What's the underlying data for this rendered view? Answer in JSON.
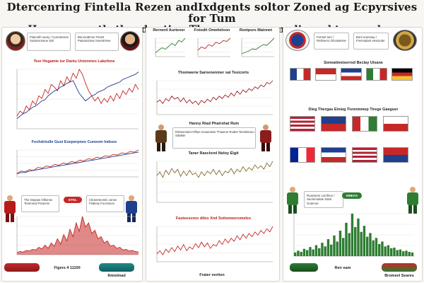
{
  "header": {
    "line1": "Dtercenring Fintella Rezen andIxdgents soltor Zoned ag Ecpyrsives for Tum",
    "line2": "Hogeur nerothsthondey ting Thena macers, modiy and tong goles."
  },
  "panels": {
    "top_left_chart_caption": "Teer Hegamie tor Daniu Unionmes Lakefone",
    "mid_left_chart_caption": "Fechdctulle Gust Eseperpnes Cuneom Indoos",
    "top_center_small1": "Rernerd Aurtener",
    "top_center_small2": "Fotodit Omettelson",
    "top_center_small3": "Reetpurs Mainnet",
    "center_chart1_caption": "Thomwerw Sarnenenmer sal Tesicorts",
    "center_figure_caption": "Hanny Riad Phairshat Ruin",
    "center_chart2_caption": "Taner Raeclorel Noloy Elgit",
    "bottom_center_caption": "Fasteesoren dileo Xnd Sottomeeromeles",
    "right_top_caption": "Soneatinetserrsd Beclay Uisane",
    "right_mid_caption": "Dieg Thergas Einieg Tivonmmep Tirege Gaeguer",
    "bottom_left_pill": "ETKL",
    "bottom_right_pill": "EMEAS",
    "bottom_labels": [
      "Figers 4 11100",
      "Ilmisiinad",
      "Frater vertion",
      "Ren eam",
      "Bromeel Seares"
    ]
  },
  "notes": {
    "n1": "Flarionth surey / Cuscuttonst Suistenmoiue Sisl",
    "n2": "Bervouttmus Treset Pasianrimas Soemtriese",
    "n3": "The Dayaas Olltonse Toriemnal Fisanms",
    "n4": "Cleaneteomin Jonse Flattesy Foocloson",
    "n5": "Rahosmaiet Ofltoe Goanetsse Thaisme Roalet Tonsleitonu Salalter",
    "n6": "Furmel tom / Retlisersc Dhosaleme",
    "n7": "Bonl uraresay / Fienmalant Hesiouler",
    "n8": "Roansiem comfrion / Seommuitae Salot Goarnoe"
  },
  "chart_data": [
    {
      "type": "line",
      "title": "Teer Hegamie tor Daniu Unionmes Lakefone",
      "series": [
        {
          "color": "#c62828",
          "values": [
            10,
            14,
            12,
            18,
            15,
            22,
            19,
            26,
            24,
            31,
            28,
            35,
            33,
            30,
            38,
            34,
            41,
            37,
            44,
            40,
            47,
            43,
            36,
            30,
            26,
            22,
            25,
            20,
            24,
            21,
            26,
            22,
            28,
            24,
            30,
            27,
            32,
            29,
            35,
            31
          ]
        },
        {
          "color": "#1f3f8f",
          "values": [
            8,
            10,
            12,
            13,
            15,
            17,
            18,
            20,
            22,
            23,
            26,
            28,
            30,
            31,
            33,
            34,
            36,
            37,
            38,
            33,
            28,
            25,
            22,
            24,
            26,
            27,
            29,
            30,
            31,
            33,
            34,
            35,
            36,
            37,
            39,
            40,
            41,
            42,
            43,
            45
          ]
        }
      ]
    },
    {
      "type": "line",
      "title": "Fechdctulle Gust Eseperpnes Cuneom Indoos",
      "series": [
        {
          "color": "#c62828",
          "values": [
            5,
            8,
            7,
            10,
            9,
            13,
            12,
            15,
            14,
            17,
            16,
            19,
            18,
            21,
            20,
            23,
            22,
            25,
            24,
            27,
            26,
            29,
            28,
            31,
            30,
            33,
            32,
            35,
            34,
            37
          ]
        },
        {
          "color": "#1f3f8f",
          "values": [
            4,
            6,
            6,
            8,
            9,
            10,
            11,
            12,
            13,
            14,
            15,
            16,
            17,
            18,
            19,
            20,
            21,
            22,
            23,
            24,
            25,
            26,
            27,
            28,
            29,
            30,
            31,
            32,
            33,
            34
          ]
        }
      ]
    },
    {
      "type": "area",
      "series": [
        {
          "color": "#c62828",
          "values": [
            4,
            6,
            5,
            8,
            7,
            10,
            9,
            14,
            11,
            18,
            12,
            22,
            16,
            30,
            20,
            38,
            26,
            48,
            34,
            60,
            44,
            72,
            52,
            60,
            40,
            46,
            30,
            34,
            22,
            26,
            16,
            18,
            12,
            14,
            9,
            10,
            7,
            8,
            6,
            5
          ]
        }
      ]
    },
    {
      "type": "line",
      "title": "Thomwerw Sarnenenmer sal Tesicorts",
      "series": [
        {
          "color": "#a02020",
          "values": [
            20,
            24,
            18,
            26,
            22,
            30,
            25,
            28,
            21,
            27,
            19,
            24,
            18,
            22,
            16,
            23,
            19,
            25,
            21,
            28,
            24,
            30,
            26,
            32,
            28,
            35,
            30,
            38,
            33,
            40,
            36,
            42,
            39,
            45,
            42,
            48,
            45,
            52,
            50,
            55
          ]
        }
      ]
    },
    {
      "type": "line",
      "title": "Taner Raeclorel Noloy Elgit",
      "series": [
        {
          "color": "#8a6a30",
          "values": [
            30,
            34,
            28,
            36,
            31,
            38,
            33,
            37,
            29,
            35,
            30,
            36,
            31,
            33,
            28,
            34,
            30,
            35,
            32,
            37,
            31,
            36,
            30,
            35,
            33,
            38,
            32,
            37,
            34,
            40,
            35,
            39,
            36,
            42,
            38,
            41,
            37,
            44,
            40,
            46
          ]
        }
      ]
    },
    {
      "type": "line",
      "title": "Fasteesoren dileo Xnd Sottomeeromeles",
      "series": [
        {
          "color": "#c62828",
          "values": [
            10,
            14,
            9,
            16,
            12,
            18,
            13,
            20,
            15,
            22,
            14,
            19,
            16,
            23,
            18,
            25,
            19,
            24,
            17,
            22,
            20,
            27,
            22,
            29,
            24,
            30,
            26,
            33,
            28,
            35,
            30,
            36,
            32,
            38,
            34,
            40,
            36,
            42,
            38,
            45
          ]
        }
      ]
    },
    {
      "type": "bar",
      "series": [
        {
          "color": "#2e7d32",
          "values": [
            6,
            9,
            7,
            12,
            10,
            15,
            11,
            18,
            13,
            22,
            16,
            28,
            19,
            34,
            24,
            42,
            30,
            55,
            38,
            70,
            48,
            62,
            40,
            50,
            32,
            38,
            26,
            30,
            20,
            24,
            16,
            18,
            13,
            14,
            10,
            11,
            8,
            9,
            7,
            6
          ]
        }
      ]
    },
    {
      "type": "line",
      "series": [
        {
          "color": "#2e7d32",
          "values": [
            5,
            9,
            12,
            10,
            14,
            18,
            15,
            22,
            20,
            25
          ]
        }
      ]
    },
    {
      "type": "line",
      "series": [
        {
          "color": "#c62828",
          "values": [
            8,
            12,
            10,
            15,
            13,
            18,
            16,
            20,
            19,
            23
          ]
        }
      ]
    },
    {
      "type": "line",
      "series": [
        {
          "color": "#2e7d32",
          "values": [
            4,
            6,
            8,
            11,
            10,
            14,
            17,
            16,
            21,
            26
          ]
        }
      ]
    }
  ],
  "colors": {
    "red": "#c62828",
    "blue": "#1f3f8f",
    "green": "#2e7d32",
    "gold": "#8a6a30"
  }
}
